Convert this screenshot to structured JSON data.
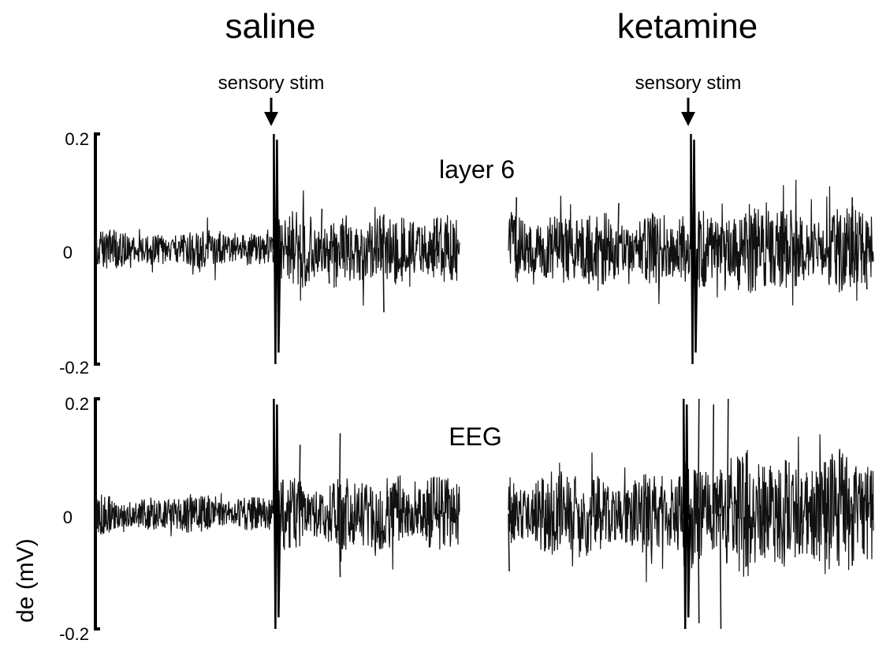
{
  "chart_data": {
    "type": "line",
    "conditions": [
      "saline",
      "ketamine"
    ],
    "stimulus_label": "sensory stim",
    "ylabel": "de (mV)",
    "ylim": [
      -0.2,
      0.2
    ],
    "yticks": [
      "0.2",
      "0",
      "-0.2"
    ],
    "panels": [
      {
        "label": "layer 6",
        "saline": {
          "baseline_amplitude": 0.03,
          "stim_position": 0.49,
          "stim_peak": 0.2,
          "stim_trough": -0.2,
          "post_stim_amplitude": 0.06,
          "spikes": [
            [
              0.62,
              0.07
            ],
            [
              0.64,
              -0.06
            ],
            [
              0.79,
              0.06
            ],
            [
              0.79,
              -0.11
            ],
            [
              0.93,
              0.04
            ]
          ]
        },
        "ketamine": {
          "baseline_amplitude": 0.06,
          "stim_position": 0.5,
          "stim_peak": 0.2,
          "stim_trough": -0.2,
          "post_stim_amplitude": 0.07,
          "spikes": [
            [
              0.02,
              0.09
            ],
            [
              0.3,
              0.08
            ],
            [
              0.94,
              0.09
            ],
            [
              0.98,
              -0.07
            ]
          ]
        }
      },
      {
        "label": "EEG",
        "saline": {
          "baseline_amplitude": 0.03,
          "stim_position": 0.49,
          "stim_peak": 0.2,
          "stim_trough": -0.2,
          "post_stim_amplitude": 0.06,
          "spikes": [
            [
              0.56,
              0.12
            ],
            [
              0.67,
              0.14
            ],
            [
              0.67,
              -0.11
            ],
            [
              0.8,
              0.04
            ]
          ]
        },
        "ketamine": {
          "baseline_amplitude": 0.07,
          "stim_position": 0.48,
          "stim_peak": 0.2,
          "stim_trough": -0.2,
          "post_stim_amplitude": 0.1,
          "spikes": [
            [
              0.52,
              0.2
            ],
            [
              0.52,
              -0.19
            ],
            [
              0.56,
              0.19
            ],
            [
              0.6,
              0.2
            ],
            [
              0.58,
              -0.2
            ],
            [
              0.0,
              -0.1
            ],
            [
              0.94,
              -0.09
            ]
          ]
        }
      }
    ]
  }
}
